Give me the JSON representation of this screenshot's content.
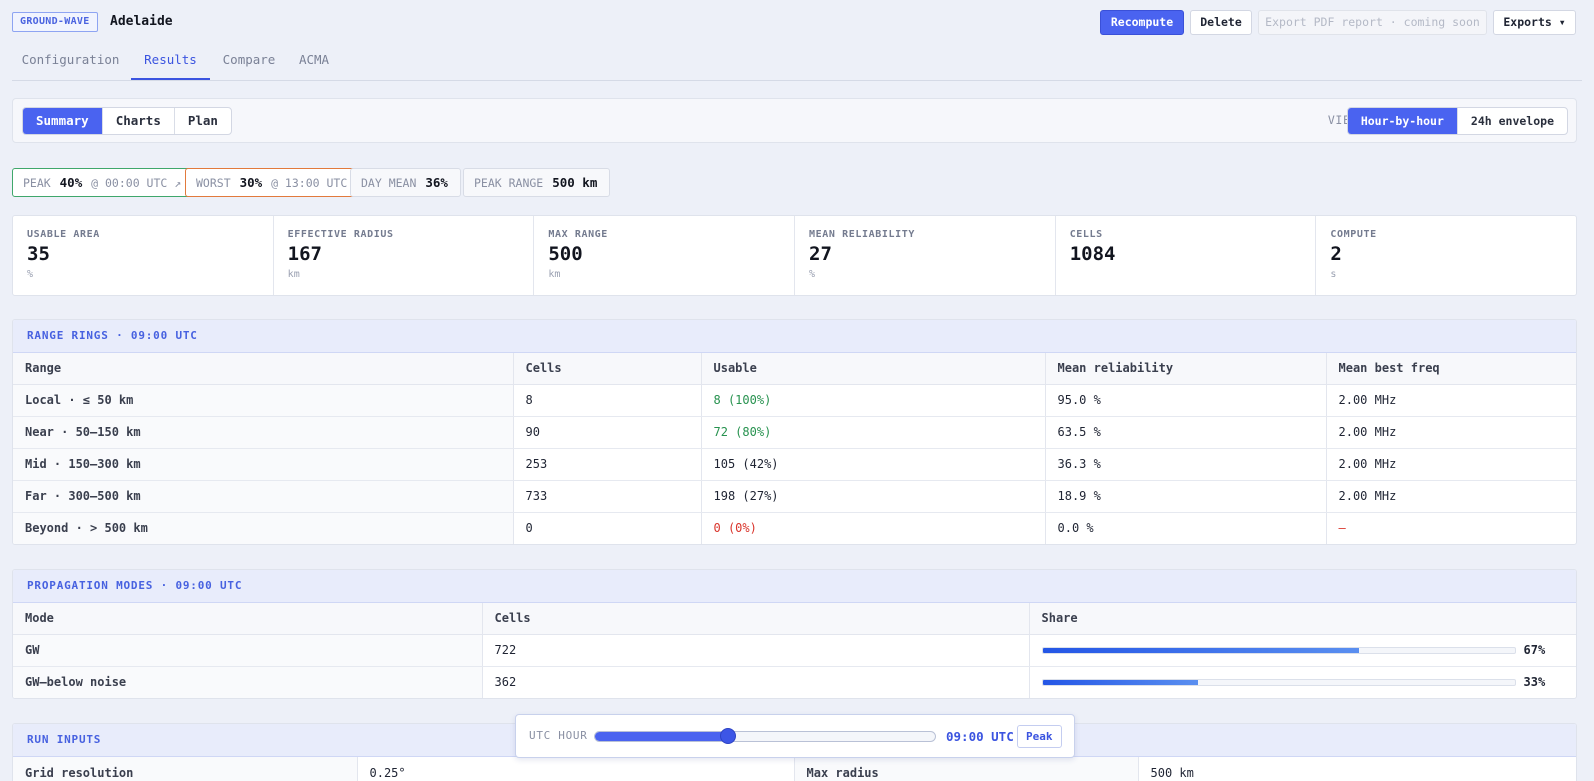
{
  "header": {
    "kind_badge": "GROUND-WAVE",
    "station": "Adelaide",
    "recompute": "Recompute",
    "delete": "Delete",
    "export_pdf": "Export PDF report · coming soon",
    "exports": "Exports ▾"
  },
  "tabs": [
    {
      "label": "Configuration"
    },
    {
      "label": "Results",
      "active": true
    },
    {
      "label": "Compare"
    },
    {
      "label": "ACMA"
    }
  ],
  "toolbar": {
    "views": [
      {
        "label": "Summary",
        "active": true
      },
      {
        "label": "Charts"
      },
      {
        "label": "Plan"
      }
    ],
    "view_label": "VIEW",
    "modes": [
      {
        "label": "Hour-by-hour",
        "active": true
      },
      {
        "label": "24h envelope"
      }
    ]
  },
  "pills": {
    "peak_label": "PEAK",
    "peak_value": "40%",
    "peak_at": "@ 00:00 UTC ↗",
    "worst_label": "WORST",
    "worst_value": "30%",
    "worst_at": "@ 13:00 UTC",
    "mean_label": "DAY MEAN",
    "mean_value": "36%",
    "range_label": "PEAK RANGE",
    "range_value": "500 km"
  },
  "stats": [
    {
      "label": "USABLE AREA",
      "value": "35",
      "unit": "%"
    },
    {
      "label": "EFFECTIVE RADIUS",
      "value": "167",
      "unit": "km"
    },
    {
      "label": "MAX RANGE",
      "value": "500",
      "unit": "km"
    },
    {
      "label": "MEAN RELIABILITY",
      "value": "27",
      "unit": "%"
    },
    {
      "label": "CELLS",
      "value": "1084",
      "unit": ""
    },
    {
      "label": "COMPUTE",
      "value": "2",
      "unit": "s"
    }
  ],
  "range_rings": {
    "title": "RANGE RINGS · 09:00 UTC",
    "headers": [
      "Range",
      "Cells",
      "Usable",
      "Mean reliability",
      "Mean best freq"
    ],
    "rows": [
      {
        "range": "Local · ≤ 50 km",
        "cells": "8",
        "usable": "8 (100%)",
        "reliability": "95.0 %",
        "freq": "2.00 MHz"
      },
      {
        "range": "Near · 50–150 km",
        "cells": "90",
        "usable": "72 (80%)",
        "reliability": "63.5 %",
        "freq": "2.00 MHz"
      },
      {
        "range": "Mid · 150–300 km",
        "cells": "253",
        "usable": "105 (42%)",
        "reliability": "36.3 %",
        "freq": "2.00 MHz"
      },
      {
        "range": "Far · 300–500 km",
        "cells": "733",
        "usable": "198 (27%)",
        "reliability": "18.9 %",
        "freq": "2.00 MHz"
      },
      {
        "range": "Beyond · > 500 km",
        "cells": "0",
        "usable": "0 (0%)",
        "reliability": "0.0 %",
        "freq": "—"
      }
    ]
  },
  "modes": {
    "title": "PROPAGATION MODES · 09:00 UTC",
    "headers": [
      "Mode",
      "Cells",
      "Share"
    ],
    "rows": [
      {
        "mode": "GW",
        "cells": "722",
        "share": 0.67,
        "share_label": "67%"
      },
      {
        "mode": "GW–below noise",
        "cells": "362",
        "share": 0.33,
        "share_label": "33%"
      }
    ]
  },
  "run_inputs": {
    "title": "RUN INPUTS",
    "rows": [
      {
        "k1": "Grid resolution",
        "v1": "0.25°",
        "k2": "Max radius",
        "v2": "500 km"
      }
    ]
  },
  "slider": {
    "label": "UTC HOUR",
    "hour": 9,
    "hour_max": 23,
    "time": "09:00 UTC",
    "peak": "Peak"
  },
  "colors": {
    "accent": "#4a63f0",
    "good": "#27924f",
    "bad": "#d9342b",
    "worst": "#e27a3c"
  }
}
